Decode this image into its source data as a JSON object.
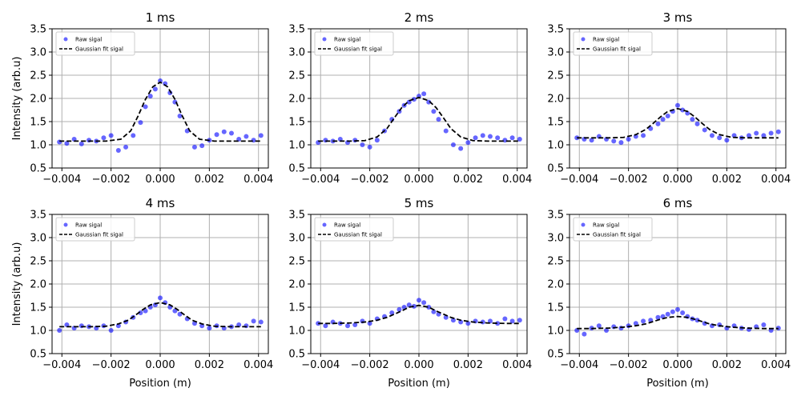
{
  "chart_data": [
    {
      "type": "scatter",
      "title": "1 ms",
      "xlabel": "",
      "ylabel": "Intensity (arb.u)",
      "xlim": [
        -0.0044,
        0.0044
      ],
      "ylim": [
        0.5,
        3.5
      ],
      "xticks": [
        -0.004,
        -0.002,
        0.0,
        0.002,
        0.004
      ],
      "xtick_labels": [
        "−0.004",
        "−0.002",
        "0.000",
        "0.002",
        "0.004"
      ],
      "yticks": [
        0.5,
        1.0,
        1.5,
        2.0,
        2.5,
        3.0,
        3.5
      ],
      "ytick_labels": [
        "0.5",
        "1.0",
        "1.5",
        "2.0",
        "2.5",
        "3.0",
        "3.5"
      ],
      "grid": true,
      "legend": "top-left",
      "series": [
        {
          "name": "Raw sigal",
          "style": "scatter",
          "x": [
            -0.0041,
            -0.0038,
            -0.0035,
            -0.0032,
            -0.0029,
            -0.0026,
            -0.0023,
            -0.002,
            -0.0017,
            -0.0014,
            -0.0011,
            -0.0008,
            -0.0006,
            -0.0004,
            -0.0002,
            0.0,
            0.0002,
            0.0004,
            0.0006,
            0.0008,
            0.0011,
            0.0014,
            0.0017,
            0.002,
            0.0023,
            0.0026,
            0.0029,
            0.0032,
            0.0035,
            0.0038,
            0.0041
          ],
          "y": [
            1.06,
            1.03,
            1.12,
            1.02,
            1.1,
            1.08,
            1.15,
            1.2,
            0.88,
            0.95,
            1.2,
            1.48,
            1.82,
            2.05,
            2.2,
            2.38,
            2.32,
            2.12,
            1.92,
            1.62,
            1.3,
            0.95,
            0.98,
            1.1,
            1.22,
            1.28,
            1.25,
            1.12,
            1.18,
            1.1,
            1.2
          ]
        },
        {
          "name": "Gaussian fit sigal",
          "style": "dashed-line",
          "x": [
            -0.0041,
            -0.0035,
            -0.0028,
            -0.0022,
            -0.0016,
            -0.0012,
            -0.0009,
            -0.0006,
            -0.0003,
            0.0,
            0.0003,
            0.0006,
            0.0009,
            0.0012,
            0.0016,
            0.0022,
            0.0028,
            0.0035,
            0.0041
          ],
          "y": [
            1.08,
            1.08,
            1.08,
            1.08,
            1.12,
            1.3,
            1.62,
            1.98,
            2.25,
            2.35,
            2.25,
            1.98,
            1.62,
            1.3,
            1.12,
            1.08,
            1.08,
            1.08,
            1.08
          ]
        }
      ]
    },
    {
      "type": "scatter",
      "title": "2 ms",
      "xlabel": "",
      "ylabel": "",
      "xlim": [
        -0.0044,
        0.0044
      ],
      "ylim": [
        0.5,
        3.5
      ],
      "xticks": [
        -0.004,
        -0.002,
        0.0,
        0.002,
        0.004
      ],
      "xtick_labels": [
        "−0.004",
        "−0.002",
        "0.000",
        "0.002",
        "0.004"
      ],
      "yticks": [
        0.5,
        1.0,
        1.5,
        2.0,
        2.5,
        3.0,
        3.5
      ],
      "ytick_labels": [
        "0.5",
        "1.0",
        "1.5",
        "2.0",
        "2.5",
        "3.0",
        "3.5"
      ],
      "grid": true,
      "legend": "top-left",
      "series": [
        {
          "name": "Raw sigal",
          "style": "scatter",
          "x": [
            -0.0041,
            -0.0038,
            -0.0035,
            -0.0032,
            -0.0029,
            -0.0026,
            -0.0023,
            -0.002,
            -0.0017,
            -0.0014,
            -0.0011,
            -0.0008,
            -0.0006,
            -0.0004,
            -0.0002,
            0.0,
            0.0002,
            0.0004,
            0.0006,
            0.0008,
            0.0011,
            0.0014,
            0.0017,
            0.002,
            0.0023,
            0.0026,
            0.0029,
            0.0032,
            0.0035,
            0.0038,
            0.0041
          ],
          "y": [
            1.05,
            1.1,
            1.08,
            1.12,
            1.05,
            1.1,
            1.0,
            0.95,
            1.1,
            1.3,
            1.55,
            1.72,
            1.85,
            1.92,
            1.98,
            2.05,
            2.1,
            1.92,
            1.72,
            1.55,
            1.3,
            1.0,
            0.92,
            1.05,
            1.15,
            1.2,
            1.18,
            1.15,
            1.1,
            1.15,
            1.12
          ]
        },
        {
          "name": "Gaussian fit sigal",
          "style": "dashed-line",
          "x": [
            -0.0041,
            -0.0035,
            -0.0028,
            -0.0022,
            -0.0017,
            -0.0013,
            -0.001,
            -0.0007,
            -0.0004,
            0.0,
            0.0004,
            0.0007,
            0.001,
            0.0013,
            0.0017,
            0.0022,
            0.0028,
            0.0035,
            0.0041
          ],
          "y": [
            1.08,
            1.08,
            1.08,
            1.09,
            1.17,
            1.35,
            1.58,
            1.8,
            1.95,
            2.02,
            1.95,
            1.8,
            1.58,
            1.35,
            1.17,
            1.09,
            1.08,
            1.08,
            1.08
          ]
        }
      ]
    },
    {
      "type": "scatter",
      "title": "3 ms",
      "xlabel": "",
      "ylabel": "",
      "xlim": [
        -0.0044,
        0.0044
      ],
      "ylim": [
        0.5,
        3.5
      ],
      "xticks": [
        -0.004,
        -0.002,
        0.0,
        0.002,
        0.004
      ],
      "xtick_labels": [
        "−0.004",
        "−0.002",
        "0.000",
        "0.002",
        "0.004"
      ],
      "yticks": [
        0.5,
        1.0,
        1.5,
        2.0,
        2.5,
        3.0,
        3.5
      ],
      "ytick_labels": [
        "0.5",
        "1.0",
        "1.5",
        "2.0",
        "2.5",
        "3.0",
        "3.5"
      ],
      "grid": true,
      "legend": "top-left",
      "series": [
        {
          "name": "Raw sigal",
          "style": "scatter",
          "x": [
            -0.0041,
            -0.0038,
            -0.0035,
            -0.0032,
            -0.0029,
            -0.0026,
            -0.0023,
            -0.002,
            -0.0017,
            -0.0014,
            -0.0011,
            -0.0008,
            -0.0006,
            -0.0004,
            -0.0002,
            0.0,
            0.0002,
            0.0004,
            0.0006,
            0.0008,
            0.0011,
            0.0014,
            0.0017,
            0.002,
            0.0023,
            0.0026,
            0.0029,
            0.0032,
            0.0035,
            0.0038,
            0.0041
          ],
          "y": [
            1.15,
            1.12,
            1.1,
            1.18,
            1.12,
            1.08,
            1.05,
            1.12,
            1.18,
            1.2,
            1.35,
            1.45,
            1.55,
            1.62,
            1.72,
            1.85,
            1.75,
            1.68,
            1.55,
            1.45,
            1.32,
            1.2,
            1.15,
            1.1,
            1.2,
            1.15,
            1.2,
            1.25,
            1.2,
            1.25,
            1.28
          ]
        },
        {
          "name": "Gaussian fit sigal",
          "style": "dashed-line",
          "x": [
            -0.0041,
            -0.0035,
            -0.0028,
            -0.0022,
            -0.0017,
            -0.0013,
            -0.001,
            -0.0007,
            -0.0004,
            0.0,
            0.0004,
            0.0007,
            0.001,
            0.0013,
            0.0017,
            0.0022,
            0.0028,
            0.0035,
            0.0041
          ],
          "y": [
            1.15,
            1.15,
            1.15,
            1.16,
            1.22,
            1.33,
            1.46,
            1.6,
            1.72,
            1.78,
            1.72,
            1.6,
            1.46,
            1.33,
            1.22,
            1.16,
            1.15,
            1.15,
            1.15
          ]
        }
      ]
    },
    {
      "type": "scatter",
      "title": "4 ms",
      "xlabel": "Position (m)",
      "ylabel": "Intensity (arb.u)",
      "xlim": [
        -0.0044,
        0.0044
      ],
      "ylim": [
        0.5,
        3.5
      ],
      "xticks": [
        -0.004,
        -0.002,
        0.0,
        0.002,
        0.004
      ],
      "xtick_labels": [
        "−0.004",
        "−0.002",
        "0.000",
        "0.002",
        "0.004"
      ],
      "yticks": [
        0.5,
        1.0,
        1.5,
        2.0,
        2.5,
        3.0,
        3.5
      ],
      "ytick_labels": [
        "0.5",
        "1.0",
        "1.5",
        "2.0",
        "2.5",
        "3.0",
        "3.5"
      ],
      "grid": true,
      "legend": "top-left",
      "series": [
        {
          "name": "Raw sigal",
          "style": "scatter",
          "x": [
            -0.0041,
            -0.0038,
            -0.0035,
            -0.0032,
            -0.0029,
            -0.0026,
            -0.0023,
            -0.002,
            -0.0017,
            -0.0014,
            -0.0011,
            -0.0008,
            -0.0006,
            -0.0004,
            -0.0002,
            0.0,
            0.0002,
            0.0004,
            0.0006,
            0.0008,
            0.0011,
            0.0014,
            0.0017,
            0.002,
            0.0023,
            0.0026,
            0.0029,
            0.0032,
            0.0035,
            0.0038,
            0.0041
          ],
          "y": [
            1.0,
            1.12,
            1.05,
            1.1,
            1.08,
            1.05,
            1.1,
            1.0,
            1.1,
            1.18,
            1.28,
            1.38,
            1.42,
            1.5,
            1.55,
            1.7,
            1.6,
            1.5,
            1.42,
            1.35,
            1.25,
            1.15,
            1.1,
            1.05,
            1.1,
            1.05,
            1.08,
            1.12,
            1.1,
            1.2,
            1.18
          ]
        },
        {
          "name": "Gaussian fit sigal",
          "style": "dashed-line",
          "x": [
            -0.0041,
            -0.0035,
            -0.0028,
            -0.0022,
            -0.0017,
            -0.0013,
            -0.001,
            -0.0007,
            -0.0004,
            0.0,
            0.0004,
            0.0007,
            0.001,
            0.0013,
            0.0017,
            0.0022,
            0.0028,
            0.0035,
            0.0041
          ],
          "y": [
            1.08,
            1.08,
            1.08,
            1.09,
            1.14,
            1.22,
            1.33,
            1.45,
            1.55,
            1.6,
            1.55,
            1.45,
            1.33,
            1.22,
            1.14,
            1.09,
            1.08,
            1.08,
            1.08
          ]
        }
      ]
    },
    {
      "type": "scatter",
      "title": "5 ms",
      "xlabel": "Position (m)",
      "ylabel": "",
      "xlim": [
        -0.0044,
        0.0044
      ],
      "ylim": [
        0.5,
        3.5
      ],
      "xticks": [
        -0.004,
        -0.002,
        0.0,
        0.002,
        0.004
      ],
      "xtick_labels": [
        "−0.004",
        "−0.002",
        "0.000",
        "0.002",
        "0.004"
      ],
      "yticks": [
        0.5,
        1.0,
        1.5,
        2.0,
        2.5,
        3.0,
        3.5
      ],
      "ytick_labels": [
        "0.5",
        "1.0",
        "1.5",
        "2.0",
        "2.5",
        "3.0",
        "3.5"
      ],
      "grid": true,
      "legend": "top-left",
      "series": [
        {
          "name": "Raw sigal",
          "style": "scatter",
          "x": [
            -0.0041,
            -0.0038,
            -0.0035,
            -0.0032,
            -0.0029,
            -0.0026,
            -0.0023,
            -0.002,
            -0.0017,
            -0.0014,
            -0.0011,
            -0.0008,
            -0.0006,
            -0.0004,
            -0.0002,
            0.0,
            0.0002,
            0.0004,
            0.0006,
            0.0008,
            0.0011,
            0.0014,
            0.0017,
            0.002,
            0.0023,
            0.0026,
            0.0029,
            0.0032,
            0.0035,
            0.0038,
            0.0041
          ],
          "y": [
            1.15,
            1.1,
            1.18,
            1.15,
            1.1,
            1.12,
            1.2,
            1.15,
            1.25,
            1.3,
            1.38,
            1.45,
            1.5,
            1.55,
            1.52,
            1.65,
            1.6,
            1.5,
            1.4,
            1.35,
            1.28,
            1.22,
            1.18,
            1.15,
            1.2,
            1.18,
            1.2,
            1.15,
            1.25,
            1.2,
            1.22
          ]
        },
        {
          "name": "Gaussian fit sigal",
          "style": "dashed-line",
          "x": [
            -0.0041,
            -0.0035,
            -0.0028,
            -0.0022,
            -0.0017,
            -0.0013,
            -0.001,
            -0.0007,
            -0.0004,
            0.0,
            0.0004,
            0.0007,
            0.001,
            0.0013,
            0.0017,
            0.0022,
            0.0028,
            0.0035,
            0.0041
          ],
          "y": [
            1.15,
            1.15,
            1.16,
            1.18,
            1.22,
            1.28,
            1.35,
            1.42,
            1.5,
            1.54,
            1.5,
            1.42,
            1.35,
            1.28,
            1.22,
            1.18,
            1.16,
            1.15,
            1.15
          ]
        }
      ]
    },
    {
      "type": "scatter",
      "title": "6 ms",
      "xlabel": "Position (m)",
      "ylabel": "",
      "xlim": [
        -0.0044,
        0.0044
      ],
      "ylim": [
        0.5,
        3.5
      ],
      "xticks": [
        -0.004,
        -0.002,
        0.0,
        0.002,
        0.004
      ],
      "xtick_labels": [
        "−0.004",
        "−0.002",
        "0.000",
        "0.002",
        "0.004"
      ],
      "yticks": [
        0.5,
        1.0,
        1.5,
        2.0,
        2.5,
        3.0,
        3.5
      ],
      "ytick_labels": [
        "0.5",
        "1.0",
        "1.5",
        "2.0",
        "2.5",
        "3.0",
        "3.5"
      ],
      "grid": true,
      "legend": "top-left",
      "series": [
        {
          "name": "Raw sigal",
          "style": "scatter",
          "x": [
            -0.0041,
            -0.0038,
            -0.0035,
            -0.0032,
            -0.0029,
            -0.0026,
            -0.0023,
            -0.002,
            -0.0017,
            -0.0014,
            -0.0011,
            -0.0008,
            -0.0006,
            -0.0004,
            -0.0002,
            0.0,
            0.0002,
            0.0004,
            0.0006,
            0.0008,
            0.0011,
            0.0014,
            0.0017,
            0.002,
            0.0023,
            0.0026,
            0.0029,
            0.0032,
            0.0035,
            0.0038,
            0.0041
          ],
          "y": [
            1.0,
            0.92,
            1.05,
            1.1,
            1.0,
            1.08,
            1.05,
            1.1,
            1.15,
            1.2,
            1.22,
            1.28,
            1.3,
            1.35,
            1.4,
            1.45,
            1.38,
            1.3,
            1.25,
            1.22,
            1.15,
            1.1,
            1.12,
            1.05,
            1.1,
            1.05,
            1.02,
            1.08,
            1.12,
            1.0,
            1.05
          ]
        },
        {
          "name": "Gaussian fit sigal",
          "style": "dashed-line",
          "x": [
            -0.0041,
            -0.0035,
            -0.0028,
            -0.0022,
            -0.0017,
            -0.0013,
            -0.001,
            -0.0007,
            -0.0004,
            0.0,
            0.0004,
            0.0007,
            0.001,
            0.0013,
            0.0017,
            0.0022,
            0.0028,
            0.0035,
            0.0041
          ],
          "y": [
            1.04,
            1.04,
            1.05,
            1.07,
            1.1,
            1.14,
            1.19,
            1.24,
            1.28,
            1.3,
            1.28,
            1.24,
            1.19,
            1.14,
            1.1,
            1.07,
            1.05,
            1.04,
            1.04
          ]
        }
      ]
    }
  ]
}
